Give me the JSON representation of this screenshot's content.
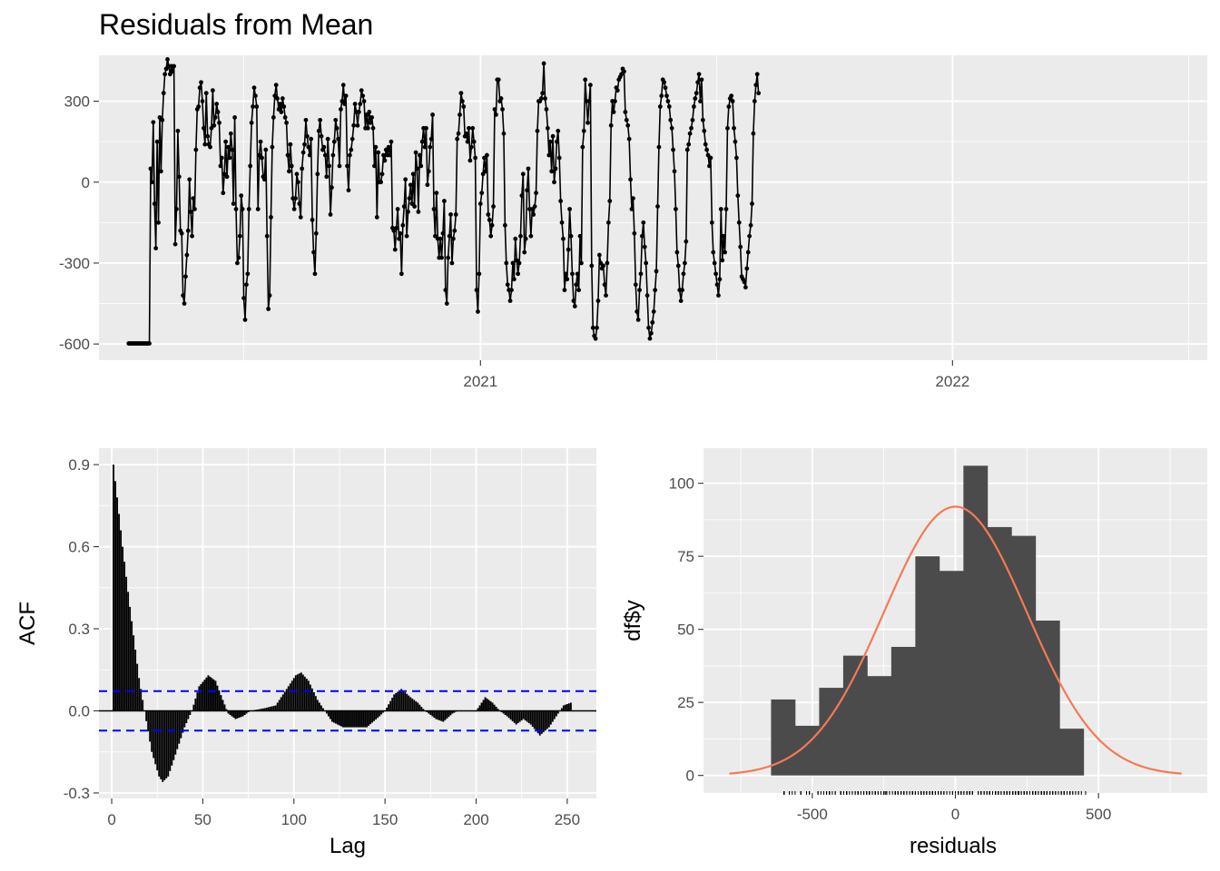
{
  "colors": {
    "panel_bg": "#ebebeb",
    "grid": "#ffffff",
    "line": "#000000",
    "bar_fill": "#4b4b4b",
    "normal_curve": "#f47a55",
    "ci_line": "#0000ff"
  },
  "chart_data": [
    {
      "type": "line",
      "title": "Residuals from Mean",
      "xlabel": "",
      "ylabel": "",
      "x_range": [
        "2020-03-12",
        "2022-07-17"
      ],
      "x_ticks": [
        {
          "date": "2021-01-01",
          "label": "2021"
        },
        {
          "date": "2022-01-01",
          "label": "2022"
        }
      ],
      "ylim": [
        -660,
        470
      ],
      "y_ticks": [
        -600,
        -300,
        0,
        300
      ],
      "y_tick_labels": [
        "-600",
        "-300",
        "0",
        "300"
      ],
      "grid": true,
      "markers": true,
      "start_date": "2020-04-04",
      "series": [
        {
          "values": [
            -598,
            -598,
            -598,
            -598,
            -598,
            -598,
            -598,
            -598,
            -598,
            -598,
            -598,
            -598,
            -598,
            -598,
            -598,
            -598,
            -598,
            50,
            0,
            222,
            -80,
            -245,
            150,
            -150,
            240,
            40,
            230,
            330,
            400,
            420,
            455,
            430,
            400,
            430,
            410,
            430,
            -230,
            -100,
            190,
            20,
            -180,
            -190,
            -420,
            -450,
            -350,
            -270,
            -180,
            10,
            -110,
            -200,
            -60,
            -100,
            120,
            270,
            280,
            350,
            370,
            300,
            200,
            140,
            330,
            170,
            140,
            130,
            200,
            340,
            210,
            240,
            290,
            260,
            220,
            60,
            90,
            -40,
            30,
            150,
            20,
            130,
            90,
            180,
            120,
            -80,
            240,
            -100,
            -300,
            -280,
            -200,
            -50,
            -100,
            -430,
            -510,
            -380,
            -340,
            -100,
            60,
            220,
            280,
            350,
            320,
            280,
            -100,
            100,
            150,
            90,
            20,
            10,
            120,
            -200,
            -470,
            -420,
            -130,
            130,
            240,
            320,
            360,
            310,
            270,
            290,
            260,
            310,
            280,
            240,
            220,
            100,
            40,
            140,
            60,
            -60,
            -100,
            -60,
            30,
            0,
            -80,
            -130,
            50,
            110,
            140,
            230,
            170,
            130,
            100,
            160,
            -140,
            -260,
            -340,
            -190,
            30,
            190,
            230,
            170,
            120,
            130,
            100,
            20,
            160,
            60,
            -120,
            -20,
            100,
            150,
            230,
            200,
            160,
            60,
            270,
            300,
            360,
            290,
            320,
            60,
            -30,
            100,
            120,
            160,
            210,
            290,
            260,
            210,
            260,
            290,
            340,
            320,
            300,
            200,
            250,
            200,
            260,
            220,
            240,
            200,
            60,
            130,
            -130,
            110,
            0,
            0,
            30,
            100,
            80,
            120,
            100,
            130,
            100,
            150,
            -170,
            -180,
            -250,
            -170,
            -100,
            -210,
            -190,
            -340,
            -160,
            -90,
            10,
            -200,
            -110,
            -60,
            -10,
            -80,
            30,
            -90,
            110,
            50,
            -110,
            100,
            60,
            150,
            200,
            130,
            200,
            -10,
            40,
            130,
            160,
            250,
            -100,
            -200,
            -40,
            -210,
            -280,
            -210,
            -280,
            -190,
            -70,
            -400,
            -450,
            -280,
            -200,
            -120,
            -300,
            -210,
            -180,
            -120,
            160,
            180,
            250,
            330,
            300,
            280,
            170,
            180,
            150,
            200,
            80,
            130,
            200,
            150,
            90,
            -400,
            -480,
            -340,
            -80,
            -40,
            30,
            90,
            40,
            100,
            -120,
            -140,
            -200,
            -160,
            -90,
            270,
            250,
            380,
            380,
            300,
            310,
            270,
            180,
            -160,
            -300,
            -380,
            -400,
            -440,
            -400,
            -300,
            -360,
            -210,
            -290,
            -340,
            -300,
            -200,
            -50,
            30,
            -260,
            -210,
            -30,
            50,
            -100,
            -200,
            -100,
            -120,
            -90,
            -40,
            190,
            300,
            300,
            310,
            330,
            440,
            310,
            270,
            200,
            100,
            150,
            40,
            170,
            0,
            50,
            150,
            190,
            90,
            -70,
            -150,
            -210,
            -400,
            -340,
            -360,
            -250,
            -100,
            -200,
            -340,
            -440,
            -460,
            -380,
            -340,
            -400,
            -200,
            -300,
            130,
            190,
            380,
            300,
            220,
            300,
            360,
            -310,
            -540,
            -570,
            -580,
            -540,
            -440,
            -270,
            -300,
            -320,
            -310,
            -380,
            -420,
            -300,
            -150,
            -70,
            210,
            300,
            260,
            300,
            350,
            340,
            380,
            390,
            400,
            420,
            410,
            260,
            230,
            210,
            160,
            10,
            -100,
            -60,
            -190,
            -380,
            -480,
            -510,
            -400,
            -340,
            -200,
            -150,
            -240,
            -300,
            -420,
            -540,
            -580,
            -560,
            -520,
            -480,
            -400,
            -330,
            -90,
            130,
            280,
            320,
            380,
            370,
            350,
            320,
            300,
            280,
            230,
            200,
            120,
            40,
            -100,
            -260,
            -310,
            -400,
            -440,
            -400,
            -340,
            -300,
            -220,
            120,
            140,
            180,
            200,
            230,
            280,
            310,
            330,
            370,
            400,
            300,
            380,
            230,
            190,
            140,
            120,
            100,
            60,
            90,
            -150,
            -260,
            -300,
            -340,
            -380,
            -420,
            -360,
            -100,
            -290,
            -200,
            -260,
            -100,
            200,
            280,
            310,
            320,
            300,
            200,
            150,
            90,
            -50,
            -150,
            -240,
            -350,
            -360,
            -370,
            -390,
            -320,
            -260,
            -200,
            -160,
            -80,
            180,
            300,
            360,
            400,
            330
          ]
        }
      ]
    },
    {
      "type": "bar",
      "xlabel": "Lag",
      "ylabel": "ACF",
      "xlim": [
        -7,
        266
      ],
      "ylim": [
        -0.32,
        0.96
      ],
      "x_ticks": [
        0,
        50,
        100,
        150,
        200,
        250
      ],
      "y_ticks": [
        -0.3,
        0.0,
        0.3,
        0.6,
        0.9
      ],
      "y_tick_labels": [
        "-0.3",
        "0.0",
        "0.3",
        "0.6",
        "0.9"
      ],
      "ci": 0.072,
      "max_lag": 252,
      "curve_points": [
        [
          1,
          0.9
        ],
        [
          3,
          0.78
        ],
        [
          6,
          0.6
        ],
        [
          10,
          0.38
        ],
        [
          15,
          0.12
        ],
        [
          18,
          0.0
        ],
        [
          22,
          -0.15
        ],
        [
          26,
          -0.24
        ],
        [
          28,
          -0.26
        ],
        [
          31,
          -0.24
        ],
        [
          35,
          -0.16
        ],
        [
          40,
          -0.06
        ],
        [
          44,
          0.0
        ],
        [
          48,
          0.09
        ],
        [
          53,
          0.13
        ],
        [
          57,
          0.11
        ],
        [
          61,
          0.04
        ],
        [
          64,
          -0.01
        ],
        [
          68,
          -0.03
        ],
        [
          72,
          -0.02
        ],
        [
          76,
          0.0
        ],
        [
          84,
          0.01
        ],
        [
          90,
          0.02
        ],
        [
          96,
          0.08
        ],
        [
          101,
          0.13
        ],
        [
          104,
          0.14
        ],
        [
          108,
          0.11
        ],
        [
          113,
          0.04
        ],
        [
          117,
          0.0
        ],
        [
          121,
          -0.04
        ],
        [
          127,
          -0.06
        ],
        [
          140,
          -0.06
        ],
        [
          147,
          -0.02
        ],
        [
          150,
          0.0
        ],
        [
          155,
          0.06
        ],
        [
          159,
          0.08
        ],
        [
          164,
          0.05
        ],
        [
          168,
          0.03
        ],
        [
          172,
          0.0
        ],
        [
          178,
          -0.03
        ],
        [
          182,
          -0.04
        ],
        [
          187,
          -0.01
        ],
        [
          190,
          0.0
        ],
        [
          200,
          0.0
        ],
        [
          205,
          0.05
        ],
        [
          209,
          0.03
        ],
        [
          213,
          0.0
        ],
        [
          217,
          -0.02
        ],
        [
          222,
          -0.05
        ],
        [
          226,
          -0.03
        ],
        [
          230,
          -0.05
        ],
        [
          235,
          -0.09
        ],
        [
          240,
          -0.06
        ],
        [
          245,
          -0.01
        ],
        [
          248,
          0.02
        ],
        [
          252,
          0.03
        ]
      ]
    },
    {
      "type": "bar",
      "xlabel": "residuals",
      "ylabel": "df$y",
      "xlim": [
        -880,
        880
      ],
      "ylim": [
        -6,
        112
      ],
      "x_ticks": [
        -500,
        0,
        500
      ],
      "x_tick_labels": [
        "-500",
        "0",
        "500"
      ],
      "y_ticks": [
        0,
        25,
        50,
        75,
        100
      ],
      "y_tick_labels": [
        "0",
        "25",
        "50",
        "75",
        "100"
      ],
      "bin_width": 84,
      "bins": [
        {
          "x0": -644,
          "count": 26
        },
        {
          "x0": -560,
          "count": 17
        },
        {
          "x0": -476,
          "count": 30
        },
        {
          "x0": -392,
          "count": 41
        },
        {
          "x0": -308,
          "count": 34
        },
        {
          "x0": -224,
          "count": 44
        },
        {
          "x0": -140,
          "count": 75
        },
        {
          "x0": -56,
          "count": 70
        },
        {
          "x0": 28,
          "count": 106
        },
        {
          "x0": 112,
          "count": 85
        },
        {
          "x0": 196,
          "count": 82
        },
        {
          "x0": 280,
          "count": 53
        },
        {
          "x0": 364,
          "count": 16
        }
      ],
      "normal_curve": {
        "mean": 0,
        "sd": 250,
        "peak": 92,
        "range": [
          -790,
          790
        ]
      },
      "rug": true
    }
  ]
}
